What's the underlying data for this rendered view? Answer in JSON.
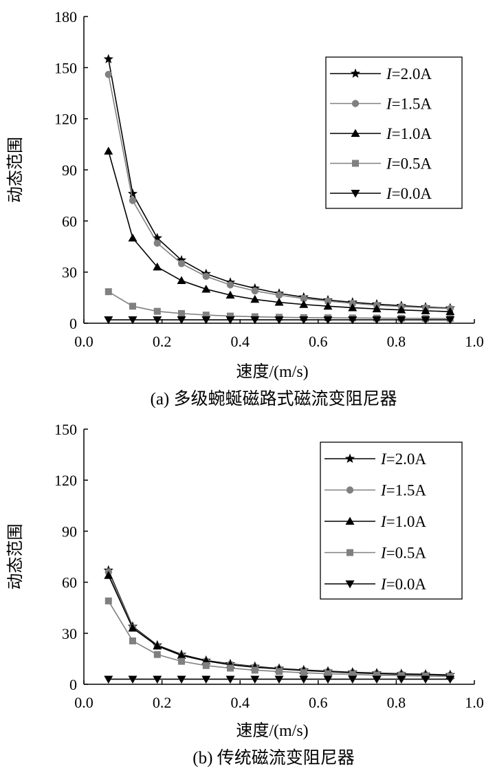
{
  "chart_data": [
    {
      "type": "line",
      "caption": "(a) 多级蜿蜒磁路式磁流变阻尼器",
      "xlabel": "速度/(m/s)",
      "ylabel": "动态范围",
      "xlim": [
        0.0,
        1.0
      ],
      "ylim": [
        0,
        180
      ],
      "xticks": [
        "0.0",
        "0.2",
        "0.4",
        "0.6",
        "0.8",
        "1.0"
      ],
      "yticks": [
        "0",
        "30",
        "60",
        "90",
        "120",
        "150",
        "180"
      ],
      "grid": false,
      "legend_position": "top-right",
      "x": [
        0.063,
        0.125,
        0.188,
        0.25,
        0.313,
        0.375,
        0.438,
        0.5,
        0.563,
        0.625,
        0.688,
        0.75,
        0.813,
        0.875,
        0.938
      ],
      "series": [
        {
          "name_prefix": "I",
          "name_suffix": "=2.0A",
          "marker": "star",
          "color": "#000000",
          "values": [
            155,
            76,
            50,
            37,
            29,
            24,
            20.5,
            17.5,
            15.3,
            13.6,
            12.3,
            11.2,
            10.3,
            9.5,
            8.9
          ]
        },
        {
          "name_prefix": "I",
          "name_suffix": "=1.5A",
          "marker": "circle",
          "color": "#808080",
          "values": [
            146,
            72,
            47,
            35,
            27.5,
            22.5,
            19,
            16.5,
            14.5,
            13,
            11.7,
            10.6,
            9.8,
            9.1,
            8.6
          ]
        },
        {
          "name_prefix": "I",
          "name_suffix": "=1.0A",
          "marker": "triangle-up",
          "color": "#000000",
          "values": [
            101,
            50,
            33,
            25,
            20,
            16.5,
            14,
            12.3,
            11,
            10,
            9.1,
            8.4,
            7.8,
            7.3,
            6.8
          ]
        },
        {
          "name_prefix": "I",
          "name_suffix": "=0.5A",
          "marker": "square",
          "color": "#808080",
          "values": [
            18.5,
            10,
            7,
            5.7,
            4.8,
            4.2,
            3.8,
            3.5,
            3.3,
            3.2,
            3.1,
            3.0,
            2.9,
            2.8,
            2.8
          ]
        },
        {
          "name_prefix": "I",
          "name_suffix": "=0.0A",
          "marker": "triangle-down",
          "color": "#000000",
          "values": [
            2,
            2,
            2,
            2,
            2,
            2,
            2,
            2,
            2,
            2,
            2,
            2,
            2,
            2,
            2
          ]
        }
      ]
    },
    {
      "type": "line",
      "caption": "(b) 传统磁流变阻尼器",
      "xlabel": "速度/(m/s)",
      "ylabel": "动态范围",
      "xlim": [
        0.0,
        1.0
      ],
      "ylim": [
        0,
        150
      ],
      "xticks": [
        "0.0",
        "0.2",
        "0.4",
        "0.6",
        "0.8",
        "1.0"
      ],
      "yticks": [
        "0",
        "30",
        "60",
        "90",
        "120",
        "150"
      ],
      "grid": false,
      "legend_position": "top-right",
      "x": [
        0.063,
        0.125,
        0.188,
        0.25,
        0.313,
        0.375,
        0.438,
        0.5,
        0.563,
        0.625,
        0.688,
        0.75,
        0.813,
        0.875,
        0.938
      ],
      "series": [
        {
          "name_prefix": "I",
          "name_suffix": "=2.0A",
          "marker": "star",
          "color": "#000000",
          "values": [
            67,
            34,
            23,
            17.5,
            14,
            12,
            10.5,
            9.3,
            8.4,
            7.7,
            7.1,
            6.6,
            6.2,
            5.9,
            5.6
          ]
        },
        {
          "name_prefix": "I",
          "name_suffix": "=1.5A",
          "marker": "circle",
          "color": "#808080",
          "values": [
            66,
            33.5,
            22.5,
            17,
            13.7,
            11.7,
            10.2,
            9.1,
            8.2,
            7.5,
            6.9,
            6.4,
            6.0,
            5.7,
            5.4
          ]
        },
        {
          "name_prefix": "I",
          "name_suffix": "=1.0A",
          "marker": "triangle-up",
          "color": "#000000",
          "values": [
            64,
            33,
            22.5,
            17,
            13.7,
            11.5,
            10,
            9,
            8.1,
            7.4,
            6.8,
            6.3,
            5.9,
            5.6,
            5.3
          ]
        },
        {
          "name_prefix": "I",
          "name_suffix": "=0.5A",
          "marker": "square",
          "color": "#808080",
          "values": [
            49,
            25.5,
            17.5,
            13.5,
            11,
            9.5,
            8.3,
            7.5,
            6.8,
            6.2,
            5.8,
            5.4,
            5.1,
            4.8,
            4.6
          ]
        },
        {
          "name_prefix": "I",
          "name_suffix": "=0.0A",
          "marker": "triangle-down",
          "color": "#000000",
          "values": [
            3,
            3,
            3,
            3,
            3,
            3,
            3,
            3,
            3,
            3,
            3,
            3,
            3,
            3,
            3
          ]
        }
      ]
    }
  ]
}
